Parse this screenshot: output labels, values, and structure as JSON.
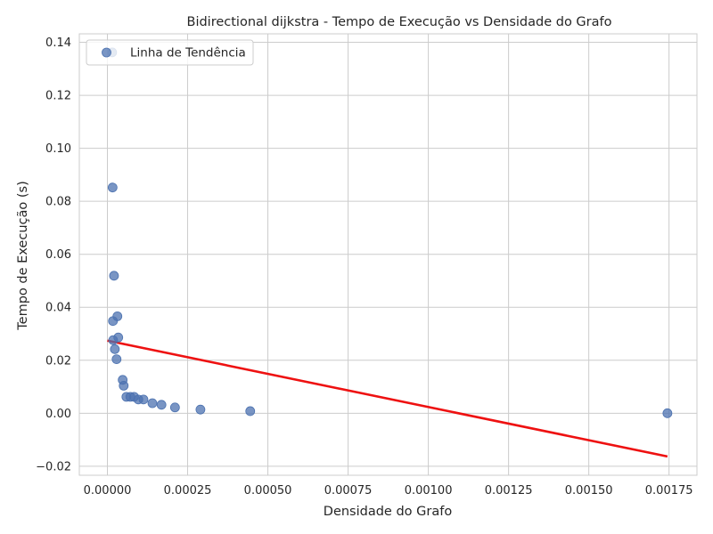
{
  "chart_data": {
    "type": "scatter",
    "title": "Bidirectional dijkstra - Tempo de Execução vs Densidade do Grafo",
    "xlabel": "Densidade do Grafo",
    "ylabel": "Tempo de Execução (s)",
    "xlim": [
      -8.75e-05,
      0.001837
    ],
    "ylim": [
      -0.0234,
      0.1432
    ],
    "grid": true,
    "legend": {
      "placement": "top-left",
      "entries": [
        "Linha de Tendência"
      ]
    },
    "x_ticks": [
      0.0,
      0.00025,
      0.0005,
      0.00075,
      0.001,
      0.00125,
      0.0015,
      0.00175
    ],
    "x_tick_labels": [
      "0.00000",
      "0.00025",
      "0.00050",
      "0.00075",
      "0.00100",
      "0.00125",
      "0.00150",
      "0.00175"
    ],
    "y_ticks": [
      -0.02,
      0.0,
      0.02,
      0.04,
      0.06,
      0.08,
      0.1,
      0.12,
      0.14
    ],
    "y_tick_labels": [
      "−0.02",
      "0.00",
      "0.02",
      "0.04",
      "0.06",
      "0.08",
      "0.10",
      "0.12",
      "0.14"
    ],
    "series": [
      {
        "name": "Linha de Tendência",
        "type": "scatter",
        "color": "#4c72b0",
        "points": [
          [
            1.48e-05,
            0.1362
          ],
          [
            1.62e-05,
            0.0852
          ],
          [
            2.06e-05,
            0.0519
          ],
          [
            1.73e-05,
            0.0348
          ],
          [
            3.12e-05,
            0.0366
          ],
          [
            1.79e-05,
            0.0276
          ],
          [
            3.39e-05,
            0.0286
          ],
          [
            2.32e-05,
            0.0242
          ],
          [
            2.86e-05,
            0.0204
          ],
          [
            4.76e-05,
            0.0126
          ],
          [
            5.08e-05,
            0.0104
          ],
          [
            5.92e-05,
            0.0062
          ],
          [
            7.14e-05,
            0.0062
          ],
          [
            8.31e-05,
            0.0062
          ],
          [
            9.64e-05,
            0.0052
          ],
          [
            0.0001123,
            0.0052
          ],
          [
            0.0001402,
            0.0038
          ],
          [
            0.0001685,
            0.0032
          ],
          [
            0.0002106,
            0.0022
          ],
          [
            0.0002899,
            0.0014
          ],
          [
            0.000445,
            0.0008
          ],
          [
            0.001745,
            0.0
          ]
        ]
      },
      {
        "name": "",
        "type": "line",
        "color": "#ee1111",
        "points": [
          [
            0.0,
            0.0274
          ],
          [
            0.001745,
            -0.0163
          ]
        ]
      }
    ]
  }
}
